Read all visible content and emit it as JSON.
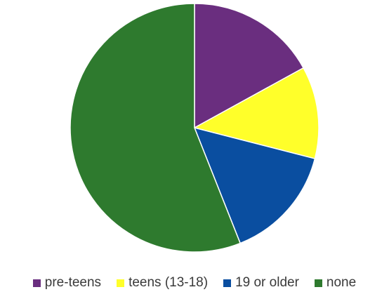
{
  "chart_data": {
    "type": "pie",
    "title": "",
    "legend_position": "bottom",
    "start_angle_deg": 0,
    "direction": "clockwise",
    "slices": [
      {
        "name": "pre-teens",
        "value": 17,
        "color": "#6a2e7f"
      },
      {
        "name": "teens (13-18)",
        "value": 12,
        "color": "#ffff2a"
      },
      {
        "name": "19 or older",
        "value": 15,
        "color": "#0a4ea0"
      },
      {
        "name": "none",
        "value": 56,
        "color": "#2e7a2e"
      }
    ]
  }
}
